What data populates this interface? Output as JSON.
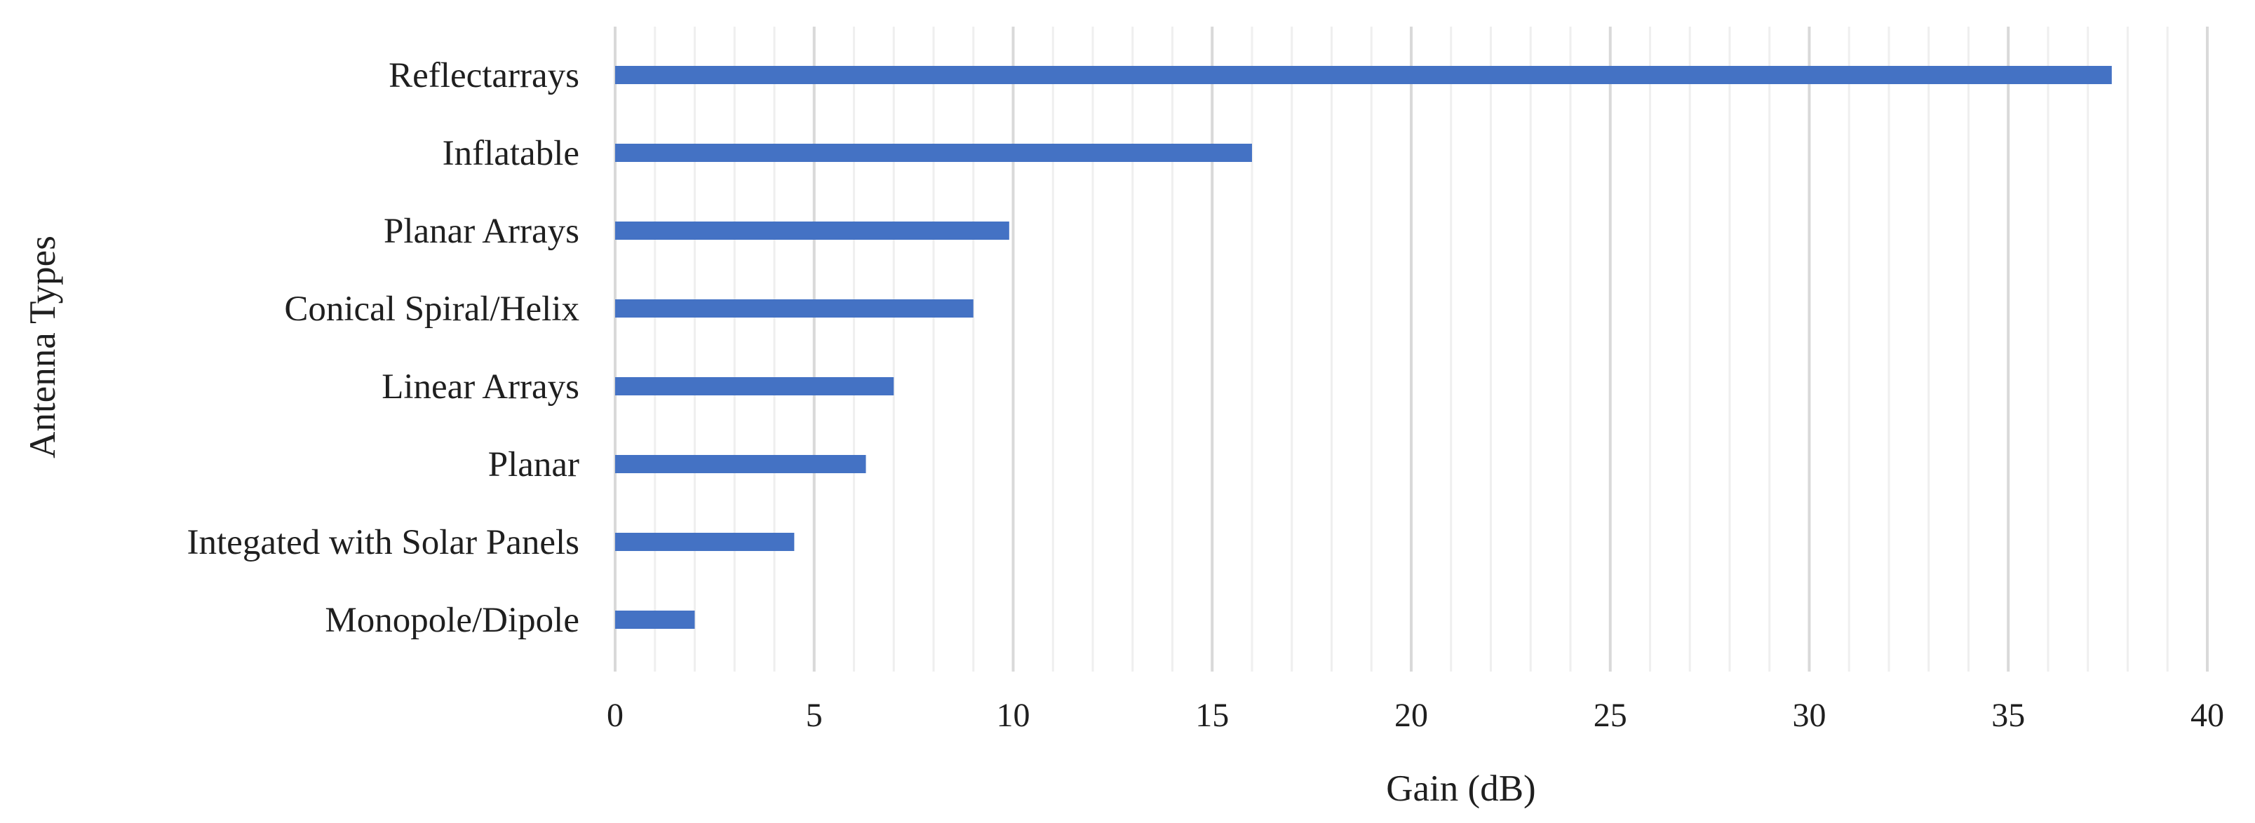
{
  "chart_data": {
    "type": "bar",
    "orientation": "horizontal",
    "title": "",
    "xlabel": "Gain (dB)",
    "ylabel": "Antenna Types",
    "categories": [
      "Reflectarrays",
      "Inflatable",
      "Planar Arrays",
      "Conical Spiral/Helix",
      "Linear Arrays",
      "Planar",
      "Integated with Solar Panels",
      "Monopole/Dipole"
    ],
    "values": [
      37.6,
      16,
      9.9,
      9,
      7,
      6.3,
      4.5,
      2
    ],
    "xlim": [
      0,
      40
    ],
    "xticks": [
      0,
      5,
      10,
      15,
      20,
      25,
      30,
      35,
      40
    ],
    "minor_grid_step": 1,
    "grid": true,
    "legend": "none",
    "colors": {
      "bar": "#4472C4",
      "major_grid": "#D9D9D9",
      "minor_grid": "#EFEFEF",
      "text": "#1F1F1F"
    }
  }
}
